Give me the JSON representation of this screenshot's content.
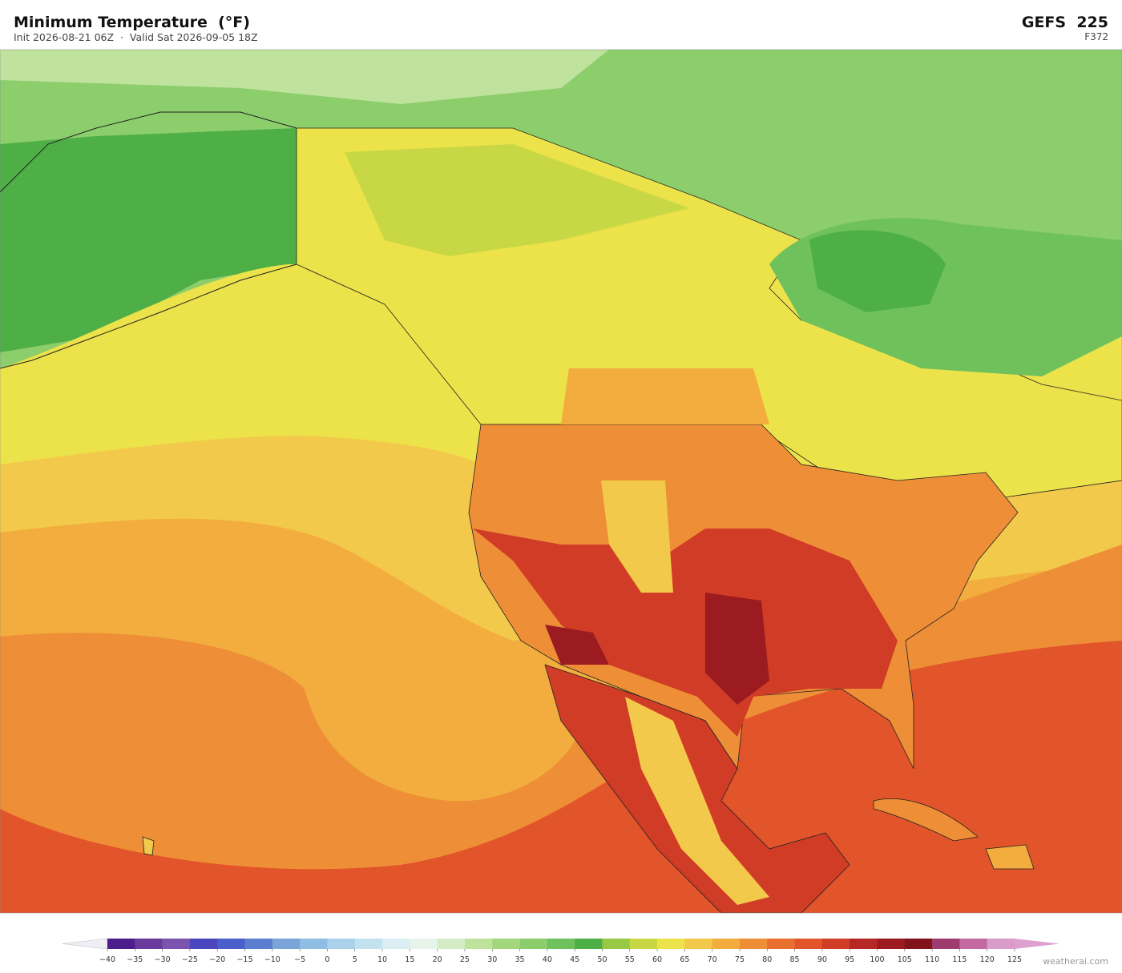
{
  "header": {
    "title": "Minimum Temperature  (°F)",
    "subtitle": "Init 2026-08-21 06Z  ·  Valid Sat 2026-09-05 18Z",
    "model": "GEFS  225",
    "forecast_hour": "F372"
  },
  "colorbar": {
    "ticks": [
      {
        "value": -40,
        "label": "−40"
      },
      {
        "value": -35,
        "label": "−35"
      },
      {
        "value": -30,
        "label": "−30"
      },
      {
        "value": -25,
        "label": "−25"
      },
      {
        "value": -20,
        "label": "−20"
      },
      {
        "value": -15,
        "label": "−15"
      },
      {
        "value": -10,
        "label": "−10"
      },
      {
        "value": -5,
        "label": "−5"
      },
      0,
      5,
      10,
      15,
      20,
      25,
      30,
      35,
      40,
      45,
      50,
      55,
      60,
      65,
      70,
      75,
      80,
      85,
      90,
      95,
      100,
      105,
      110,
      115,
      120,
      125
    ],
    "colors": [
      "#4b1e8c",
      "#6a3a9c",
      "#7b54ad",
      "#4c47bf",
      "#4a5fc9",
      "#5c7ed1",
      "#7ba4d9",
      "#8fbde3",
      "#a9d2ea",
      "#c3e2ef",
      "#daeef3",
      "#e6f4ea",
      "#d4ecc6",
      "#bfe29c",
      "#a3d77e",
      "#8ccd6c",
      "#6fc15c",
      "#4faf47",
      "#97c944",
      "#c8d844",
      "#ece24a",
      "#f2c94a",
      "#f2ad3e",
      "#ee8e36",
      "#e96f2e",
      "#e2552a",
      "#d13c26",
      "#b62824",
      "#9b1b20",
      "#81141b",
      "#9e3c70",
      "#c36ba1",
      "#d89bca"
    ],
    "under_color": "#f0eef5",
    "over_color": "#dda0d0"
  },
  "footer": {
    "credit": "weatherai.com"
  }
}
